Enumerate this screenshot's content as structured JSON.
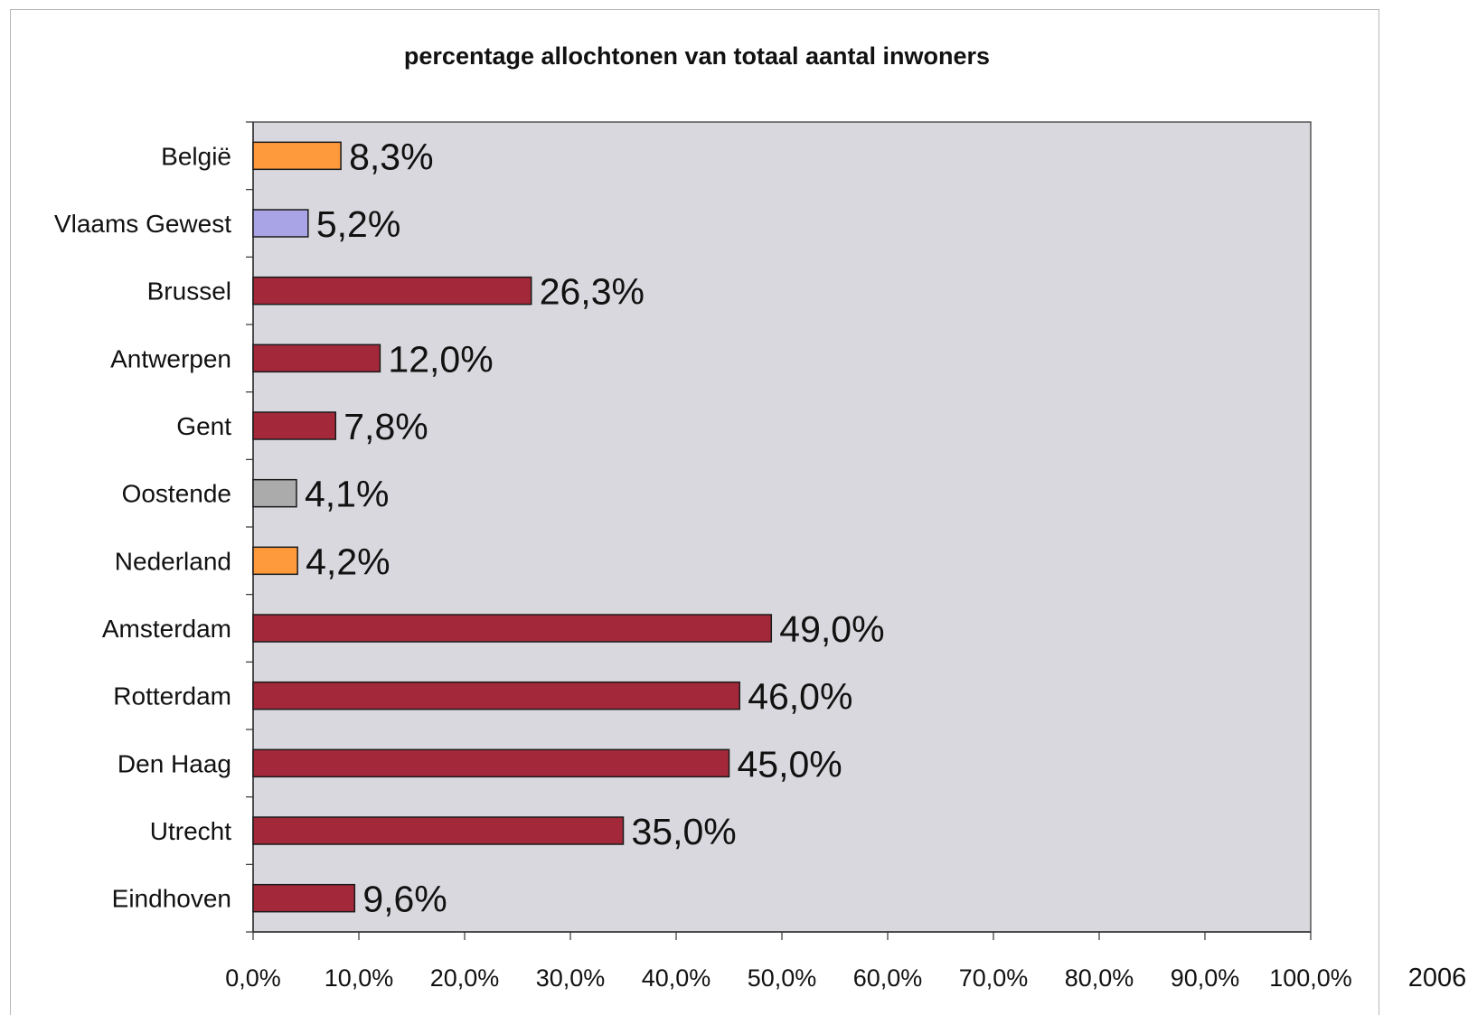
{
  "chart_data": {
    "type": "bar",
    "orientation": "horizontal",
    "title": "percentage allochtonen van totaal aantal inwoners",
    "xlabel": "",
    "ylabel": "",
    "xlim": [
      0,
      100
    ],
    "x_ticks": [
      "0,0%",
      "10,0%",
      "20,0%",
      "30,0%",
      "40,0%",
      "50,0%",
      "60,0%",
      "70,0%",
      "80,0%",
      "90,0%",
      "100,0%"
    ],
    "categories": [
      "België",
      "Vlaams Gewest",
      "Brussel",
      "Antwerpen",
      "Gent",
      "Oostende",
      "Nederland",
      "Amsterdam",
      "Rotterdam",
      "Den Haag",
      "Utrecht",
      "Eindhoven"
    ],
    "values": [
      8.3,
      5.2,
      26.3,
      12.0,
      7.8,
      4.1,
      4.2,
      49.0,
      46.0,
      45.0,
      35.0,
      9.6
    ],
    "data_labels": [
      "8,3%",
      "5,2%",
      "26,3%",
      "12,0%",
      "7,8%",
      "4,1%",
      "4,2%",
      "49,0%",
      "46,0%",
      "45,0%",
      "35,0%",
      "9,6%"
    ],
    "bar_colors": [
      "#ff9a3c",
      "#a9a4e6",
      "#a3293a",
      "#a3293a",
      "#a3293a",
      "#ababab",
      "#ff9a3c",
      "#a3293a",
      "#a3293a",
      "#a3293a",
      "#a3293a",
      "#a3293a"
    ],
    "plot_background": "#d8d8de",
    "grid": false,
    "legend": "none",
    "side_note": "2006"
  }
}
